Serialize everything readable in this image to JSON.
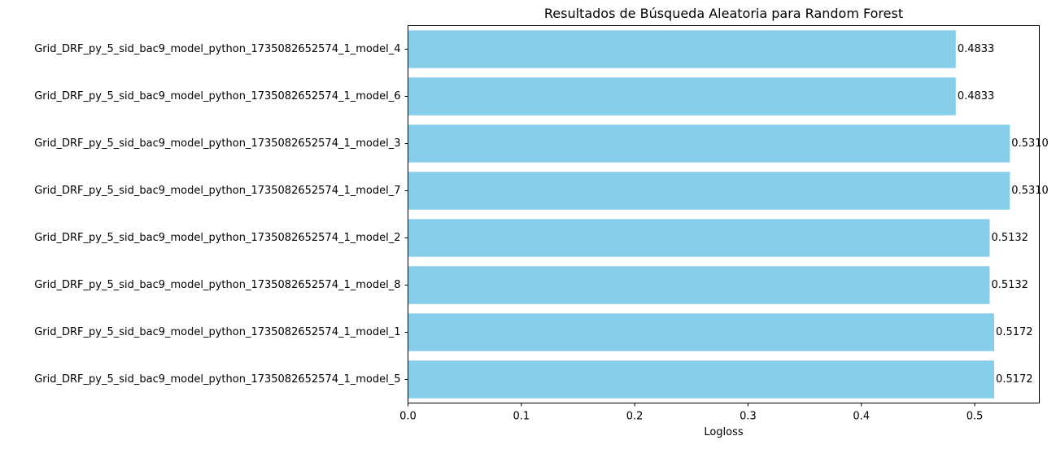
{
  "chart_data": {
    "type": "bar",
    "orientation": "horizontal",
    "title": "Resultados de Búsqueda Aleatoria para Random Forest",
    "xlabel": "Logloss",
    "ylabel": "",
    "xlim": [
      0,
      0.557
    ],
    "x_ticks": [
      "0.0",
      "0.1",
      "0.2",
      "0.3",
      "0.4",
      "0.5"
    ],
    "x_tick_values": [
      0.0,
      0.1,
      0.2,
      0.3,
      0.4,
      0.5
    ],
    "grid": false,
    "bar_color": "#87CEEB",
    "categories": [
      "Grid_DRF_py_5_sid_bac9_model_python_1735082652574_1_model_4",
      "Grid_DRF_py_5_sid_bac9_model_python_1735082652574_1_model_6",
      "Grid_DRF_py_5_sid_bac9_model_python_1735082652574_1_model_3",
      "Grid_DRF_py_5_sid_bac9_model_python_1735082652574_1_model_7",
      "Grid_DRF_py_5_sid_bac9_model_python_1735082652574_1_model_2",
      "Grid_DRF_py_5_sid_bac9_model_python_1735082652574_1_model_8",
      "Grid_DRF_py_5_sid_bac9_model_python_1735082652574_1_model_1",
      "Grid_DRF_py_5_sid_bac9_model_python_1735082652574_1_model_5"
    ],
    "values": [
      0.4833,
      0.4833,
      0.531,
      0.531,
      0.5132,
      0.5132,
      0.5172,
      0.5172
    ],
    "data_labels": [
      "0.4833",
      "0.4833",
      "0.5310",
      "0.5310",
      "0.5132",
      "0.5132",
      "0.5172",
      "0.5172"
    ]
  }
}
